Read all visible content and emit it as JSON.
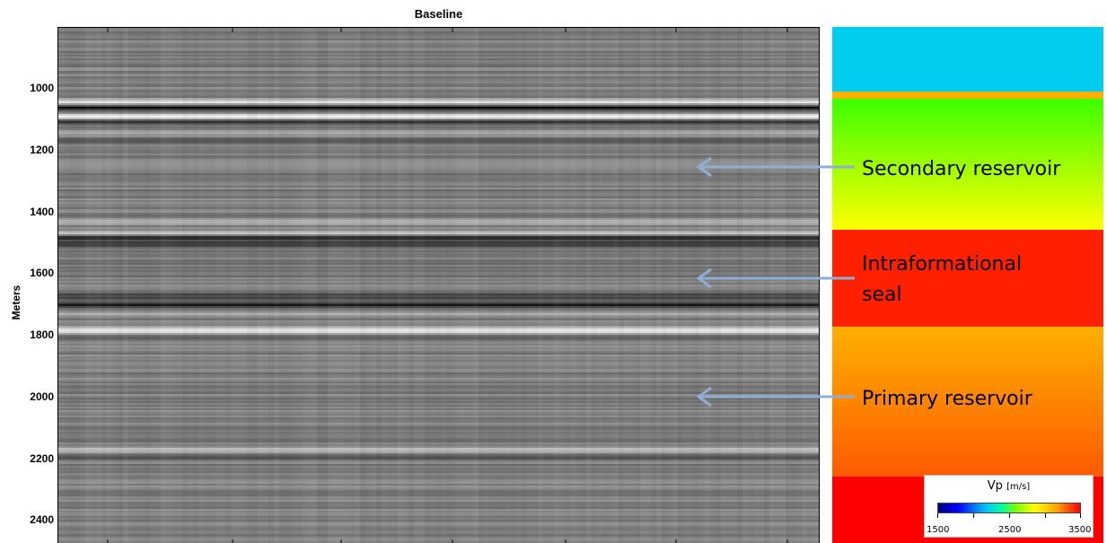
{
  "title": "Baseline",
  "ylabel": "Meters",
  "yticks": [
    "1000",
    "1200",
    "1400",
    "1600",
    "1800",
    "2000",
    "2200",
    "2400"
  ],
  "annotations": [
    {
      "label_lines": [
        "Secondary reservoir"
      ]
    },
    {
      "label_lines": [
        "Intraformational",
        "seal"
      ]
    },
    {
      "label_lines": [
        "Primary reservoir"
      ]
    }
  ],
  "colorbar": {
    "label": "Vp",
    "unit": "[m/s]",
    "ticks": [
      "1500",
      "2500",
      "3500"
    ]
  },
  "model_layer_colors": [
    "#00cdf0",
    "#ffb000",
    "#3cff00",
    "#ffff00",
    "#ff2000",
    "#ffb000",
    "#ff5a00",
    "#ff0000"
  ]
}
